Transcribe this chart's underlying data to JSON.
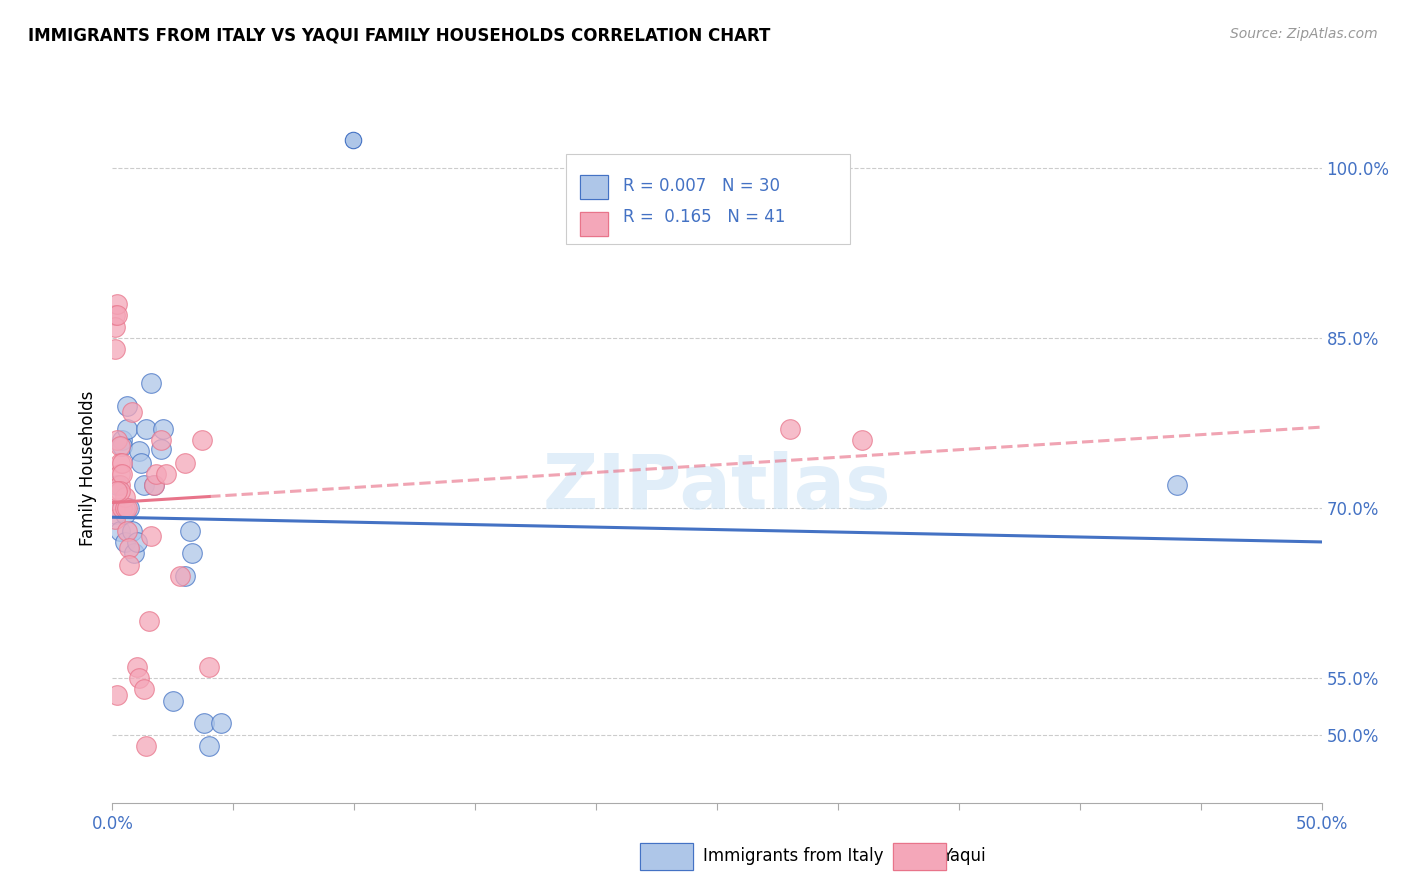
{
  "title": "IMMIGRANTS FROM ITALY VS YAQUI FAMILY HOUSEHOLDS CORRELATION CHART",
  "source": "Source: ZipAtlas.com",
  "ylabel": "Family Households",
  "xlabel_italy": "Immigrants from Italy",
  "xlabel_yaqui": "Yaqui",
  "xmin": 0.0,
  "xmax": 0.5,
  "ymin": 0.44,
  "ymax": 1.03,
  "ytick_positions": [
    0.5,
    0.55,
    0.7,
    0.85,
    1.0
  ],
  "ytick_labels": [
    "50.0%",
    "55.0%",
    "70.0%",
    "85.0%",
    "100.0%"
  ],
  "r_italy": 0.007,
  "n_italy": 30,
  "r_yaqui": 0.165,
  "n_yaqui": 41,
  "italy_color": "#aec6e8",
  "yaqui_color": "#f4a7b9",
  "italy_line_color": "#4472c4",
  "yaqui_line_color": "#e8748a",
  "watermark": "ZIPatlas",
  "italy_scatter_x": [
    0.001,
    0.002,
    0.003,
    0.003,
    0.004,
    0.004,
    0.005,
    0.005,
    0.006,
    0.006,
    0.007,
    0.008,
    0.009,
    0.01,
    0.011,
    0.012,
    0.013,
    0.014,
    0.016,
    0.017,
    0.02,
    0.021,
    0.025,
    0.03,
    0.032,
    0.033,
    0.038,
    0.04,
    0.045,
    0.44
  ],
  "italy_scatter_y": [
    0.695,
    0.72,
    0.7,
    0.68,
    0.76,
    0.755,
    0.695,
    0.67,
    0.79,
    0.77,
    0.7,
    0.68,
    0.66,
    0.67,
    0.75,
    0.74,
    0.72,
    0.77,
    0.81,
    0.72,
    0.752,
    0.77,
    0.53,
    0.64,
    0.68,
    0.66,
    0.51,
    0.49,
    0.51,
    0.72
  ],
  "yaqui_scatter_x": [
    0.001,
    0.001,
    0.001,
    0.001,
    0.001,
    0.002,
    0.002,
    0.002,
    0.003,
    0.003,
    0.003,
    0.003,
    0.004,
    0.004,
    0.004,
    0.005,
    0.005,
    0.006,
    0.006,
    0.007,
    0.007,
    0.008,
    0.01,
    0.011,
    0.013,
    0.014,
    0.015,
    0.016,
    0.017,
    0.018,
    0.02,
    0.022,
    0.028,
    0.03,
    0.037,
    0.04,
    0.28,
    0.31,
    0.003,
    0.002,
    0.002
  ],
  "yaqui_scatter_y": [
    0.87,
    0.86,
    0.84,
    0.7,
    0.69,
    0.88,
    0.87,
    0.76,
    0.755,
    0.74,
    0.73,
    0.72,
    0.74,
    0.73,
    0.7,
    0.71,
    0.7,
    0.7,
    0.68,
    0.665,
    0.65,
    0.785,
    0.56,
    0.55,
    0.54,
    0.49,
    0.6,
    0.675,
    0.72,
    0.73,
    0.76,
    0.73,
    0.64,
    0.74,
    0.76,
    0.56,
    0.77,
    0.76,
    0.715,
    0.715,
    0.535
  ]
}
